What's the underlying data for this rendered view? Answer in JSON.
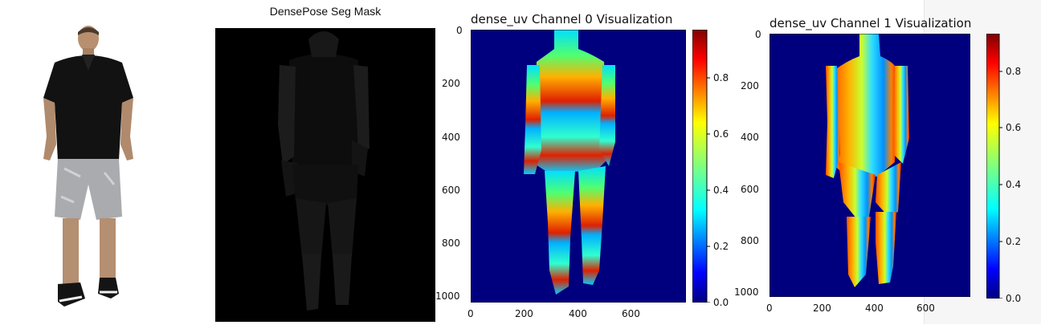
{
  "panel_seg": {
    "title": "DensePose Seg Mask"
  },
  "panel_ch0": {
    "title": "dense_uv Channel 0 Visualization",
    "y_ticks": [
      "0",
      "200",
      "400",
      "600",
      "800",
      "1000"
    ],
    "x_ticks": [
      "0",
      "200",
      "400",
      "600"
    ],
    "colorbar_ticks": [
      "0.0",
      "0.2",
      "0.4",
      "0.6",
      "0.8"
    ]
  },
  "panel_ch1": {
    "title": "dense_uv Channel 1 Visualization",
    "y_ticks": [
      "0",
      "200",
      "400",
      "600",
      "800",
      "1000"
    ],
    "x_ticks": [
      "0",
      "200",
      "400",
      "600"
    ],
    "colorbar_ticks": [
      "0.0",
      "0.2",
      "0.4",
      "0.6",
      "0.8"
    ]
  },
  "colors": {
    "jet_background": "#00007f",
    "colorbar_top": "#7f0000",
    "colorbar_bottom": "#00007f"
  }
}
